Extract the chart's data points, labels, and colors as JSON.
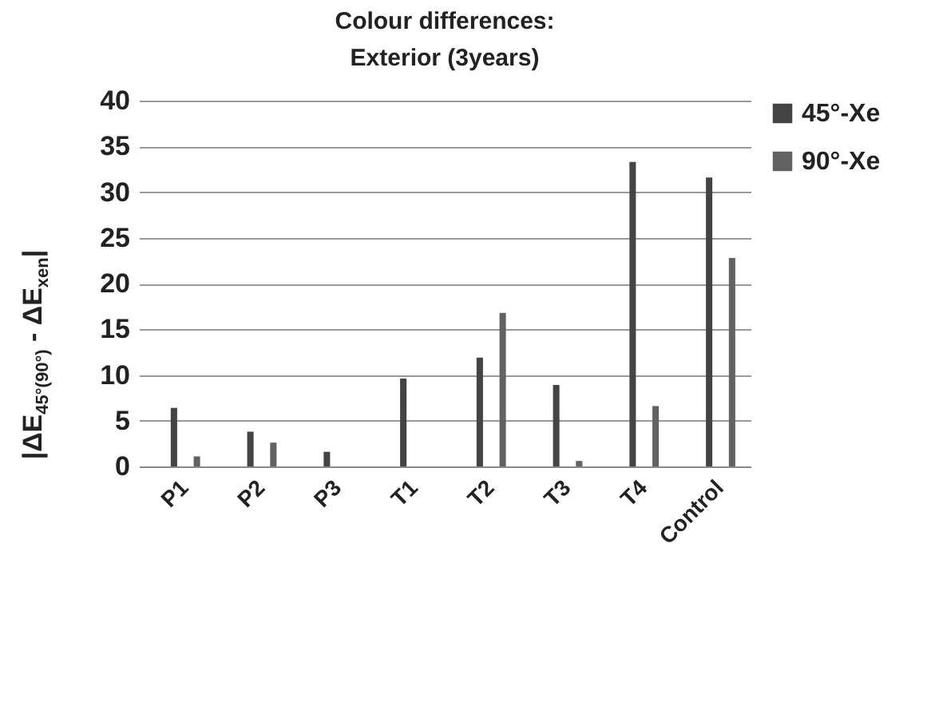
{
  "chart_data": {
    "type": "bar",
    "title": "Colour differences:",
    "subtitle": "Exterior (3years)",
    "ylabel": "|ΔE$_{45°(90°)}$ - ΔE$_{xen}$|",
    "categories": [
      "P1",
      "P2",
      "P3",
      "T1",
      "T2",
      "T3",
      "T4",
      "Control"
    ],
    "series": [
      {
        "name": "45°-Xe",
        "color": "#444444",
        "values": [
          6.4,
          3.8,
          1.6,
          9.6,
          11.9,
          8.9,
          33.3,
          31.6
        ]
      },
      {
        "name": "90°-Xe",
        "color": "#626262",
        "values": [
          1.1,
          2.6,
          null,
          null,
          16.8,
          0.6,
          6.6,
          22.8
        ]
      }
    ],
    "ylim": [
      0,
      40
    ],
    "yticks": [
      0,
      5,
      10,
      15,
      20,
      25,
      30,
      35,
      40
    ],
    "grid": "y",
    "legend": "right"
  }
}
